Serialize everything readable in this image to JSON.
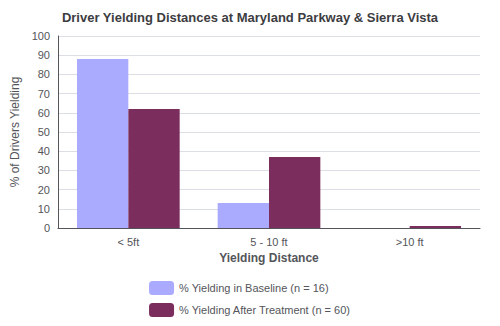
{
  "chart_data": {
    "type": "bar",
    "title": "Driver Yielding Distances at Maryland Parkway & Sierra Vista",
    "xlabel": "Yielding Distance",
    "ylabel": "% of Drivers Yielding",
    "categories": [
      "< 5ft",
      "5 - 10 ft",
      ">10 ft"
    ],
    "series": [
      {
        "name": "% Yielding in Baseline (n = 16)",
        "color": "#aaaaff",
        "values": [
          88,
          13,
          0
        ]
      },
      {
        "name": "% Yielding After Treatment (n = 60)",
        "color": "#7b2d5e",
        "values": [
          62,
          37,
          1
        ]
      }
    ],
    "ylim": [
      0,
      100
    ],
    "yticks": [
      0,
      10,
      20,
      30,
      40,
      50,
      60,
      70,
      80,
      90,
      100
    ],
    "grid": true,
    "legend": "bottom"
  }
}
